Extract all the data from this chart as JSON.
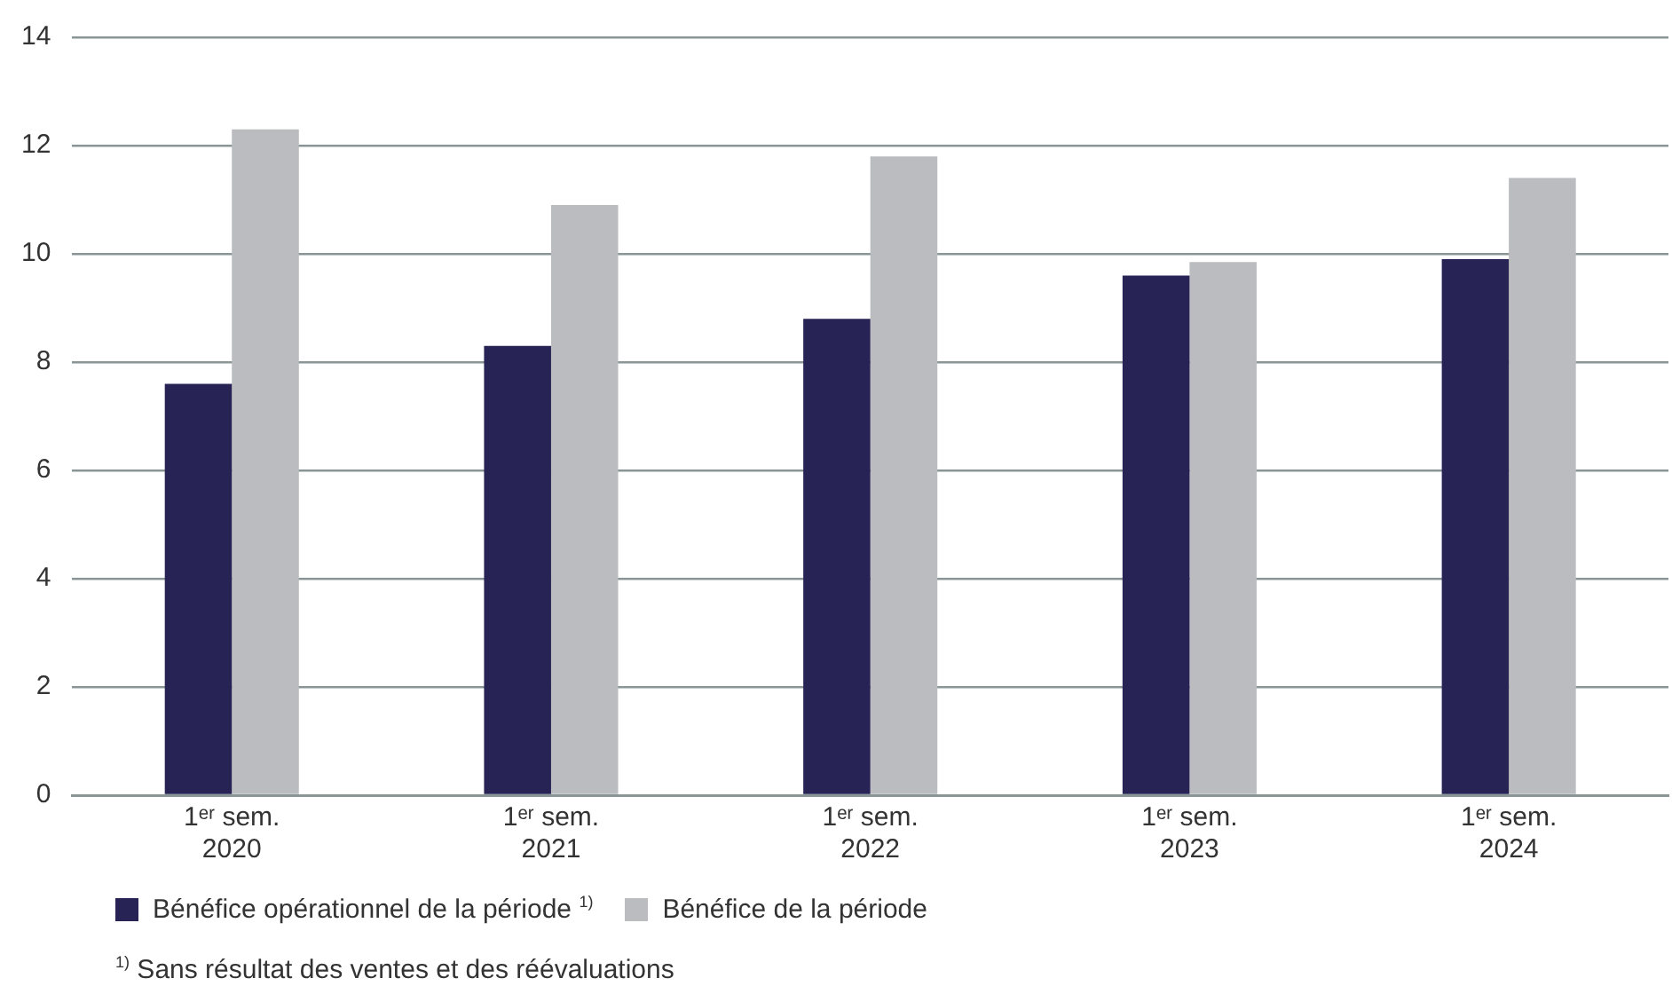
{
  "chart_data": {
    "type": "bar",
    "categories": [
      "1ᵉʳ sem.\n2020",
      "1ᵉʳ sem.\n2021",
      "1ᵉʳ sem.\n2022",
      "1ᵉʳ sem.\n2023",
      "1ᵉʳ sem.\n2024"
    ],
    "series": [
      {
        "name": "Bénéfice opérationnel de la période $^{1)}$",
        "color": "#272355",
        "values": [
          7.6,
          8.3,
          8.8,
          9.6,
          9.9
        ]
      },
      {
        "name": "Bénéfice de la période",
        "color": "#bbbcc0",
        "values": [
          12.3,
          10.9,
          11.8,
          9.85,
          11.4
        ]
      }
    ],
    "ylim": [
      0,
      14
    ],
    "yticks": [
      0,
      2,
      4,
      6,
      8,
      10,
      12,
      14
    ],
    "grid": "y",
    "legend": "bottom",
    "annotations": [
      "$^{1)}$ Sans résultat des ventes et des réévaluations"
    ]
  }
}
